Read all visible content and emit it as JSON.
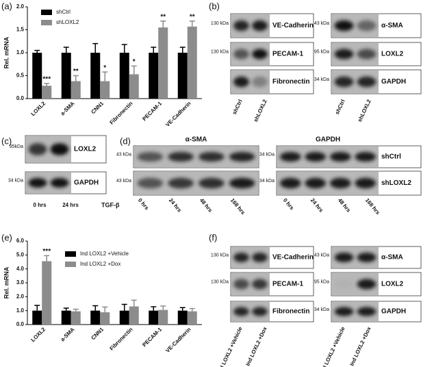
{
  "chart_data": [
    {
      "type": "bar",
      "panel_label": "(a)",
      "y_label": "Rel. mRNA",
      "categories": [
        "LOXL2",
        "a-SMA",
        "CNN1",
        "Fibronectin",
        "PECAM-1",
        "VE-Cadherin"
      ],
      "series": [
        {
          "name": "shCtrl",
          "color": "#000000",
          "values": [
            1.0,
            1.0,
            1.0,
            1.0,
            1.0,
            1.0
          ],
          "errors": [
            0.05,
            0.12,
            0.2,
            0.18,
            0.12,
            0.12
          ]
        },
        {
          "name": "shLOXL2",
          "color": "#8c8c8c",
          "values": [
            0.28,
            0.38,
            0.38,
            0.53,
            1.55,
            1.57
          ],
          "errors": [
            0.05,
            0.12,
            0.2,
            0.18,
            0.14,
            0.12
          ]
        }
      ],
      "annotations": [
        "***",
        "**",
        "*",
        "*",
        "**",
        "**"
      ],
      "ylim": [
        0,
        2
      ],
      "yticks": [
        {
          "value": 0,
          "label": "0.0"
        },
        {
          "value": 0.5,
          "label": "0.5"
        },
        {
          "value": 1,
          "label": "1.0"
        },
        {
          "value": 1.5,
          "label": "1.5"
        },
        {
          "value": 2,
          "label": "2.0"
        }
      ],
      "legend": "upper left"
    },
    {
      "type": "bar",
      "panel_label": "(e)",
      "y_label": "Rel. mRNA",
      "categories": [
        "LOXL2",
        "a-SMA",
        "CNN1",
        "Fibronectin",
        "PECAM-1",
        "VE-Cadherin"
      ],
      "series": [
        {
          "name": "Ind LOXL2 +Vehicle",
          "color": "#000000",
          "values": [
            1.0,
            1.0,
            1.0,
            1.0,
            1.0,
            1.0
          ],
          "errors": [
            0.38,
            0.18,
            0.35,
            0.45,
            0.28,
            0.22
          ]
        },
        {
          "name": "Ind LOXL2 +Dox",
          "color": "#8c8c8c",
          "values": [
            4.55,
            0.95,
            0.88,
            1.3,
            1.05,
            0.95
          ],
          "errors": [
            0.4,
            0.15,
            0.38,
            0.45,
            0.28,
            0.2
          ]
        }
      ],
      "annotations": [
        "***",
        null,
        null,
        null,
        null,
        null
      ],
      "ylim": [
        0,
        6
      ],
      "yticks": [
        {
          "value": 0,
          "label": "0.0"
        },
        {
          "value": 1,
          "label": "1.0"
        },
        {
          "value": 2,
          "label": "2.0"
        },
        {
          "value": 3,
          "label": "3.0"
        },
        {
          "value": 4,
          "label": "4.0"
        },
        {
          "value": 5,
          "label": "5.0"
        },
        {
          "value": 6,
          "label": "6.0"
        }
      ],
      "legend": "upper left"
    }
  ],
  "blots": [
    {
      "label": "(b)",
      "groups": [
        {
          "rows": [
            {
              "protein": "VE-Cadherin",
              "marker": "130 kDa"
            },
            {
              "protein": "PECAM-1",
              "marker": "130 kDa"
            },
            {
              "protein": "Fibronectin"
            }
          ],
          "lanes": [
            "shCtrl",
            "shLOXL2"
          ]
        },
        {
          "rows": [
            {
              "protein": "α-SMA",
              "marker": "43 kDa"
            },
            {
              "protein": "LOXL2",
              "marker": "95 kDa"
            },
            {
              "protein": "GAPDH",
              "marker": "34 kDa"
            }
          ],
          "lanes": [
            "shCtrl",
            "shLOXL2"
          ]
        }
      ]
    },
    {
      "label": "(c)",
      "treatment": "TGF-β",
      "groups": [
        {
          "rows": [
            {
              "protein": "LOXL2",
              "marker": "95kDa"
            },
            {
              "protein": "GAPDH",
              "marker": "34 kDa"
            }
          ],
          "lanes": [
            "0 hrs",
            "24 hrs"
          ]
        }
      ]
    },
    {
      "label": "(d)",
      "groups": [
        {
          "header": "α-SMA",
          "rows": [
            {
              "marker": "43 kDa"
            },
            {
              "marker": "43 kDa"
            }
          ],
          "lanes": [
            "0 hrs",
            "24 hrs",
            "48 hrs",
            "168 hrs"
          ]
        },
        {
          "header": "GAPDH",
          "rows": [
            {
              "protein": "shCtrl",
              "marker": "34 kDa"
            },
            {
              "protein": "shLOXL2",
              "marker": "34 kDa"
            }
          ],
          "lanes": [
            "0 hrs",
            "24 hrs",
            "48 hrs",
            "168 hrs"
          ]
        }
      ]
    },
    {
      "label": "(f)",
      "groups": [
        {
          "rows": [
            {
              "protein": "VE-Cadherin",
              "marker": "130 kDa"
            },
            {
              "protein": "PECAM-1",
              "marker": "130 kDa"
            },
            {
              "protein": "Fibronectin"
            }
          ],
          "lanes": [
            "Ind LOXL2 +Vehicle",
            "Ind LOXL2 +Dox"
          ]
        },
        {
          "rows": [
            {
              "protein": "α-SMA",
              "marker": "43 kDa"
            },
            {
              "protein": "LOXL2",
              "marker": "95 kDa"
            },
            {
              "protein": "GAPDH",
              "marker": "34 kDa"
            }
          ],
          "lanes": [
            "Ind LOXL2 +Vehicle",
            "Ind LOXL2 +Dox"
          ]
        }
      ]
    }
  ]
}
